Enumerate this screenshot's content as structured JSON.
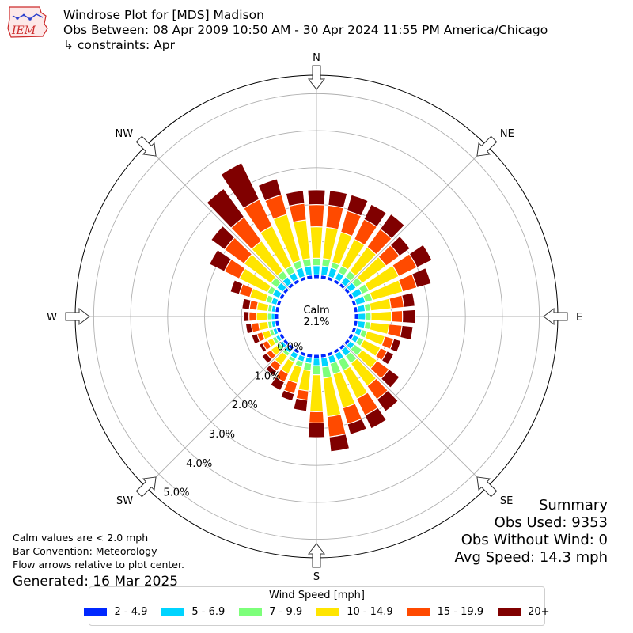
{
  "header": {
    "title": "Windrose Plot for [MDS] Madison",
    "subtitle": "Obs Between: 08 Apr 2009 10:50 AM - 30 Apr 2024 11:55 PM America/Chicago",
    "constraints": "↳ constraints: Apr",
    "logo_text": "IEM"
  },
  "notes": {
    "calm_def": "Calm values are < 2.0 mph",
    "convention": "Bar Convention: Meteorology",
    "flow": "Flow arrows relative to plot center.",
    "generated": "Generated: 16 Mar 2025"
  },
  "summary": {
    "title": "Summary",
    "obs_used": "Obs Used: 9353",
    "obs_without_wind": "Obs Without Wind: 0",
    "avg_speed": "Avg Speed: 14.3 mph"
  },
  "legend": {
    "title": "Wind Speed [mph]",
    "items": [
      {
        "label": "2 - 4.9",
        "color": "#0028ff"
      },
      {
        "label": "5 - 6.9",
        "color": "#00d4ff"
      },
      {
        "label": "7 - 9.9",
        "color": "#7dff7a"
      },
      {
        "label": "10 - 14.9",
        "color": "#ffe500"
      },
      {
        "label": "15 - 19.9",
        "color": "#ff4a00"
      },
      {
        "label": "20+",
        "color": "#800000"
      }
    ]
  },
  "chart_data": {
    "type": "windrose",
    "calm_label": "Calm",
    "calm_value": "2.1%",
    "direction_labels": [
      "N",
      "NE",
      "E",
      "SE",
      "S",
      "SW",
      "W",
      "NW"
    ],
    "radial_ticks": [
      {
        "value": 0,
        "label": "0.0%"
      },
      {
        "value": 1,
        "label": "1.0%"
      },
      {
        "value": 2,
        "label": "2.0%"
      },
      {
        "value": 3,
        "label": "3.0%"
      },
      {
        "value": 4,
        "label": "4.0%"
      },
      {
        "value": 5,
        "label": "5.0%"
      }
    ],
    "radial_max": 5.5,
    "bar_width_deg": 8,
    "bars": [
      {
        "dir": 0,
        "cum": [
          0.1,
          0.35,
          0.55,
          1.4,
          2.0,
          2.4
        ]
      },
      {
        "dir": 10,
        "cum": [
          0.1,
          0.35,
          0.55,
          1.4,
          2.0,
          2.4
        ]
      },
      {
        "dir": 20,
        "cum": [
          0.1,
          0.35,
          0.5,
          1.35,
          1.95,
          2.4
        ]
      },
      {
        "dir": 30,
        "cum": [
          0.1,
          0.3,
          0.5,
          1.3,
          1.9,
          2.35
        ]
      },
      {
        "dir": 40,
        "cum": [
          0.1,
          0.3,
          0.5,
          1.3,
          1.9,
          2.4
        ]
      },
      {
        "dir": 50,
        "cum": [
          0.1,
          0.3,
          0.5,
          1.3,
          1.75,
          2.1
        ]
      },
      {
        "dir": 60,
        "cum": [
          0.1,
          0.35,
          0.55,
          1.45,
          2.0,
          2.45
        ]
      },
      {
        "dir": 70,
        "cum": [
          0.1,
          0.35,
          0.55,
          1.4,
          1.8,
          2.2
        ]
      },
      {
        "dir": 80,
        "cum": [
          0.1,
          0.3,
          0.45,
          1.0,
          1.35,
          1.65
        ]
      },
      {
        "dir": 90,
        "cum": [
          0.1,
          0.3,
          0.45,
          1.0,
          1.3,
          1.65
        ]
      },
      {
        "dir": 100,
        "cum": [
          0.1,
          0.3,
          0.45,
          0.95,
          1.3,
          1.6
        ]
      },
      {
        "dir": 110,
        "cum": [
          0.1,
          0.25,
          0.4,
          0.9,
          1.15,
          1.35
        ]
      },
      {
        "dir": 120,
        "cum": [
          0.1,
          0.25,
          0.4,
          0.9,
          1.1,
          1.3
        ]
      },
      {
        "dir": 130,
        "cum": [
          0.1,
          0.25,
          0.5,
          1.0,
          1.4,
          1.75
        ]
      },
      {
        "dir": 140,
        "cum": [
          0.1,
          0.3,
          0.55,
          1.3,
          1.75,
          2.15
        ]
      },
      {
        "dir": 150,
        "cum": [
          0.1,
          0.3,
          0.6,
          1.45,
          1.95,
          2.35
        ]
      },
      {
        "dir": 160,
        "cum": [
          0.1,
          0.3,
          0.6,
          1.55,
          2.0,
          2.3
        ]
      },
      {
        "dir": 170,
        "cum": [
          0.1,
          0.35,
          0.65,
          1.7,
          2.25,
          2.65
        ]
      },
      {
        "dir": 180,
        "cum": [
          0.1,
          0.3,
          0.55,
          1.55,
          1.85,
          2.25
        ]
      },
      {
        "dir": 190,
        "cum": [
          0.1,
          0.25,
          0.45,
          1.0,
          1.25,
          1.55
        ]
      },
      {
        "dir": 200,
        "cum": [
          0.1,
          0.25,
          0.4,
          0.85,
          1.15,
          1.35
        ]
      },
      {
        "dir": 210,
        "cum": [
          0.1,
          0.25,
          0.35,
          0.7,
          0.95,
          1.2
        ]
      },
      {
        "dir": 220,
        "cum": [
          0.1,
          0.2,
          0.3,
          0.6,
          0.8,
          0.95
        ]
      },
      {
        "dir": 230,
        "cum": [
          0.1,
          0.2,
          0.3,
          0.5,
          0.65,
          0.8
        ]
      },
      {
        "dir": 240,
        "cum": [
          0.1,
          0.2,
          0.3,
          0.45,
          0.6,
          0.7
        ]
      },
      {
        "dir": 250,
        "cum": [
          0.1,
          0.2,
          0.3,
          0.5,
          0.65,
          0.8
        ]
      },
      {
        "dir": 260,
        "cum": [
          0.1,
          0.2,
          0.3,
          0.55,
          0.75,
          0.9
        ]
      },
      {
        "dir": 270,
        "cum": [
          0.1,
          0.2,
          0.3,
          0.6,
          0.8,
          0.95
        ]
      },
      {
        "dir": 280,
        "cum": [
          0.1,
          0.2,
          0.3,
          0.6,
          0.8,
          1.0
        ]
      },
      {
        "dir": 290,
        "cum": [
          0.1,
          0.25,
          0.4,
          0.85,
          1.15,
          1.4
        ]
      },
      {
        "dir": 300,
        "cum": [
          0.1,
          0.3,
          0.45,
          1.3,
          1.75,
          2.2
        ]
      },
      {
        "dir": 310,
        "cum": [
          0.1,
          0.3,
          0.5,
          1.4,
          2.05,
          2.5
        ]
      },
      {
        "dir": 320,
        "cum": [
          0.1,
          0.3,
          0.5,
          1.5,
          2.3,
          3.25
        ]
      },
      {
        "dir": 330,
        "cum": [
          0.1,
          0.3,
          0.5,
          1.7,
          2.5,
          3.6
        ]
      },
      {
        "dir": 340,
        "cum": [
          0.1,
          0.35,
          0.55,
          1.85,
          2.4,
          2.85
        ]
      },
      {
        "dir": 350,
        "cum": [
          0.1,
          0.35,
          0.55,
          1.6,
          2.05,
          2.4
        ]
      }
    ]
  }
}
